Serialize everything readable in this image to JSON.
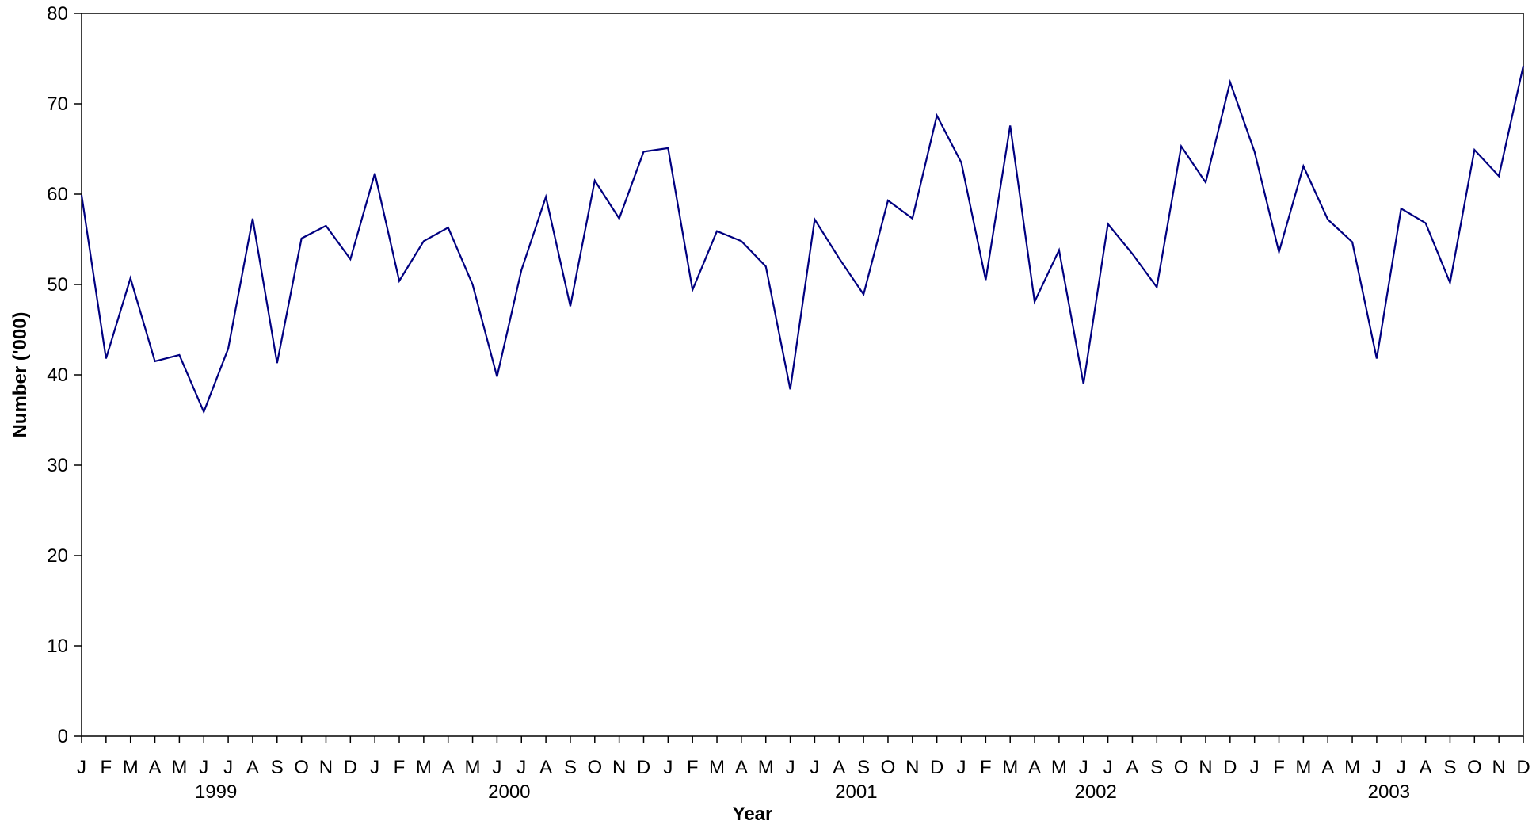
{
  "chart_data": {
    "type": "line",
    "title": "",
    "xlabel": "Year",
    "ylabel": "Number ('000)",
    "ylim": [
      0,
      80
    ],
    "yticks": [
      0,
      10,
      20,
      30,
      40,
      50,
      60,
      70,
      80
    ],
    "grid": false,
    "legend": "none",
    "month_labels": [
      "J",
      "F",
      "M",
      "A",
      "M",
      "J",
      "J",
      "A",
      "S",
      "O",
      "N",
      "D",
      "J",
      "F",
      "M",
      "A",
      "M",
      "J",
      "J",
      "A",
      "S",
      "O",
      "N",
      "D",
      "J",
      "F",
      "M",
      "A",
      "M",
      "J",
      "J",
      "A",
      "S",
      "O",
      "N",
      "D",
      "J",
      "F",
      "M",
      "A",
      "M",
      "J",
      "J",
      "A",
      "S",
      "O",
      "N",
      "D",
      "J",
      "F",
      "M",
      "A",
      "M",
      "J",
      "J",
      "A",
      "S",
      "O",
      "N",
      "D"
    ],
    "year_labels": [
      {
        "label": "1999",
        "month_index": 5.5
      },
      {
        "label": "2000",
        "month_index": 17.5
      },
      {
        "label": "2001",
        "month_index": 31.7
      },
      {
        "label": "2002",
        "month_index": 41.5
      },
      {
        "label": "2003",
        "month_index": 53.5
      }
    ],
    "series": [
      {
        "color": "#000080",
        "values": [
          59.9,
          41.8,
          50.7,
          41.5,
          42.2,
          35.9,
          42.9,
          57.3,
          41.3,
          55.1,
          56.5,
          52.8,
          62.3,
          50.4,
          54.8,
          56.3,
          50.0,
          39.8,
          51.6,
          59.7,
          47.6,
          61.5,
          57.3,
          64.7,
          65.1,
          49.4,
          55.9,
          54.8,
          52.0,
          38.4,
          57.2,
          52.9,
          48.9,
          59.3,
          57.3,
          68.7,
          63.5,
          50.5,
          67.6,
          48.1,
          53.8,
          39.0,
          56.7,
          53.4,
          49.7,
          65.3,
          61.3,
          72.4,
          64.7,
          53.6,
          63.1,
          57.2,
          54.7,
          41.8,
          58.4,
          56.8,
          50.2,
          64.9,
          62.0,
          74.2
        ]
      }
    ]
  }
}
